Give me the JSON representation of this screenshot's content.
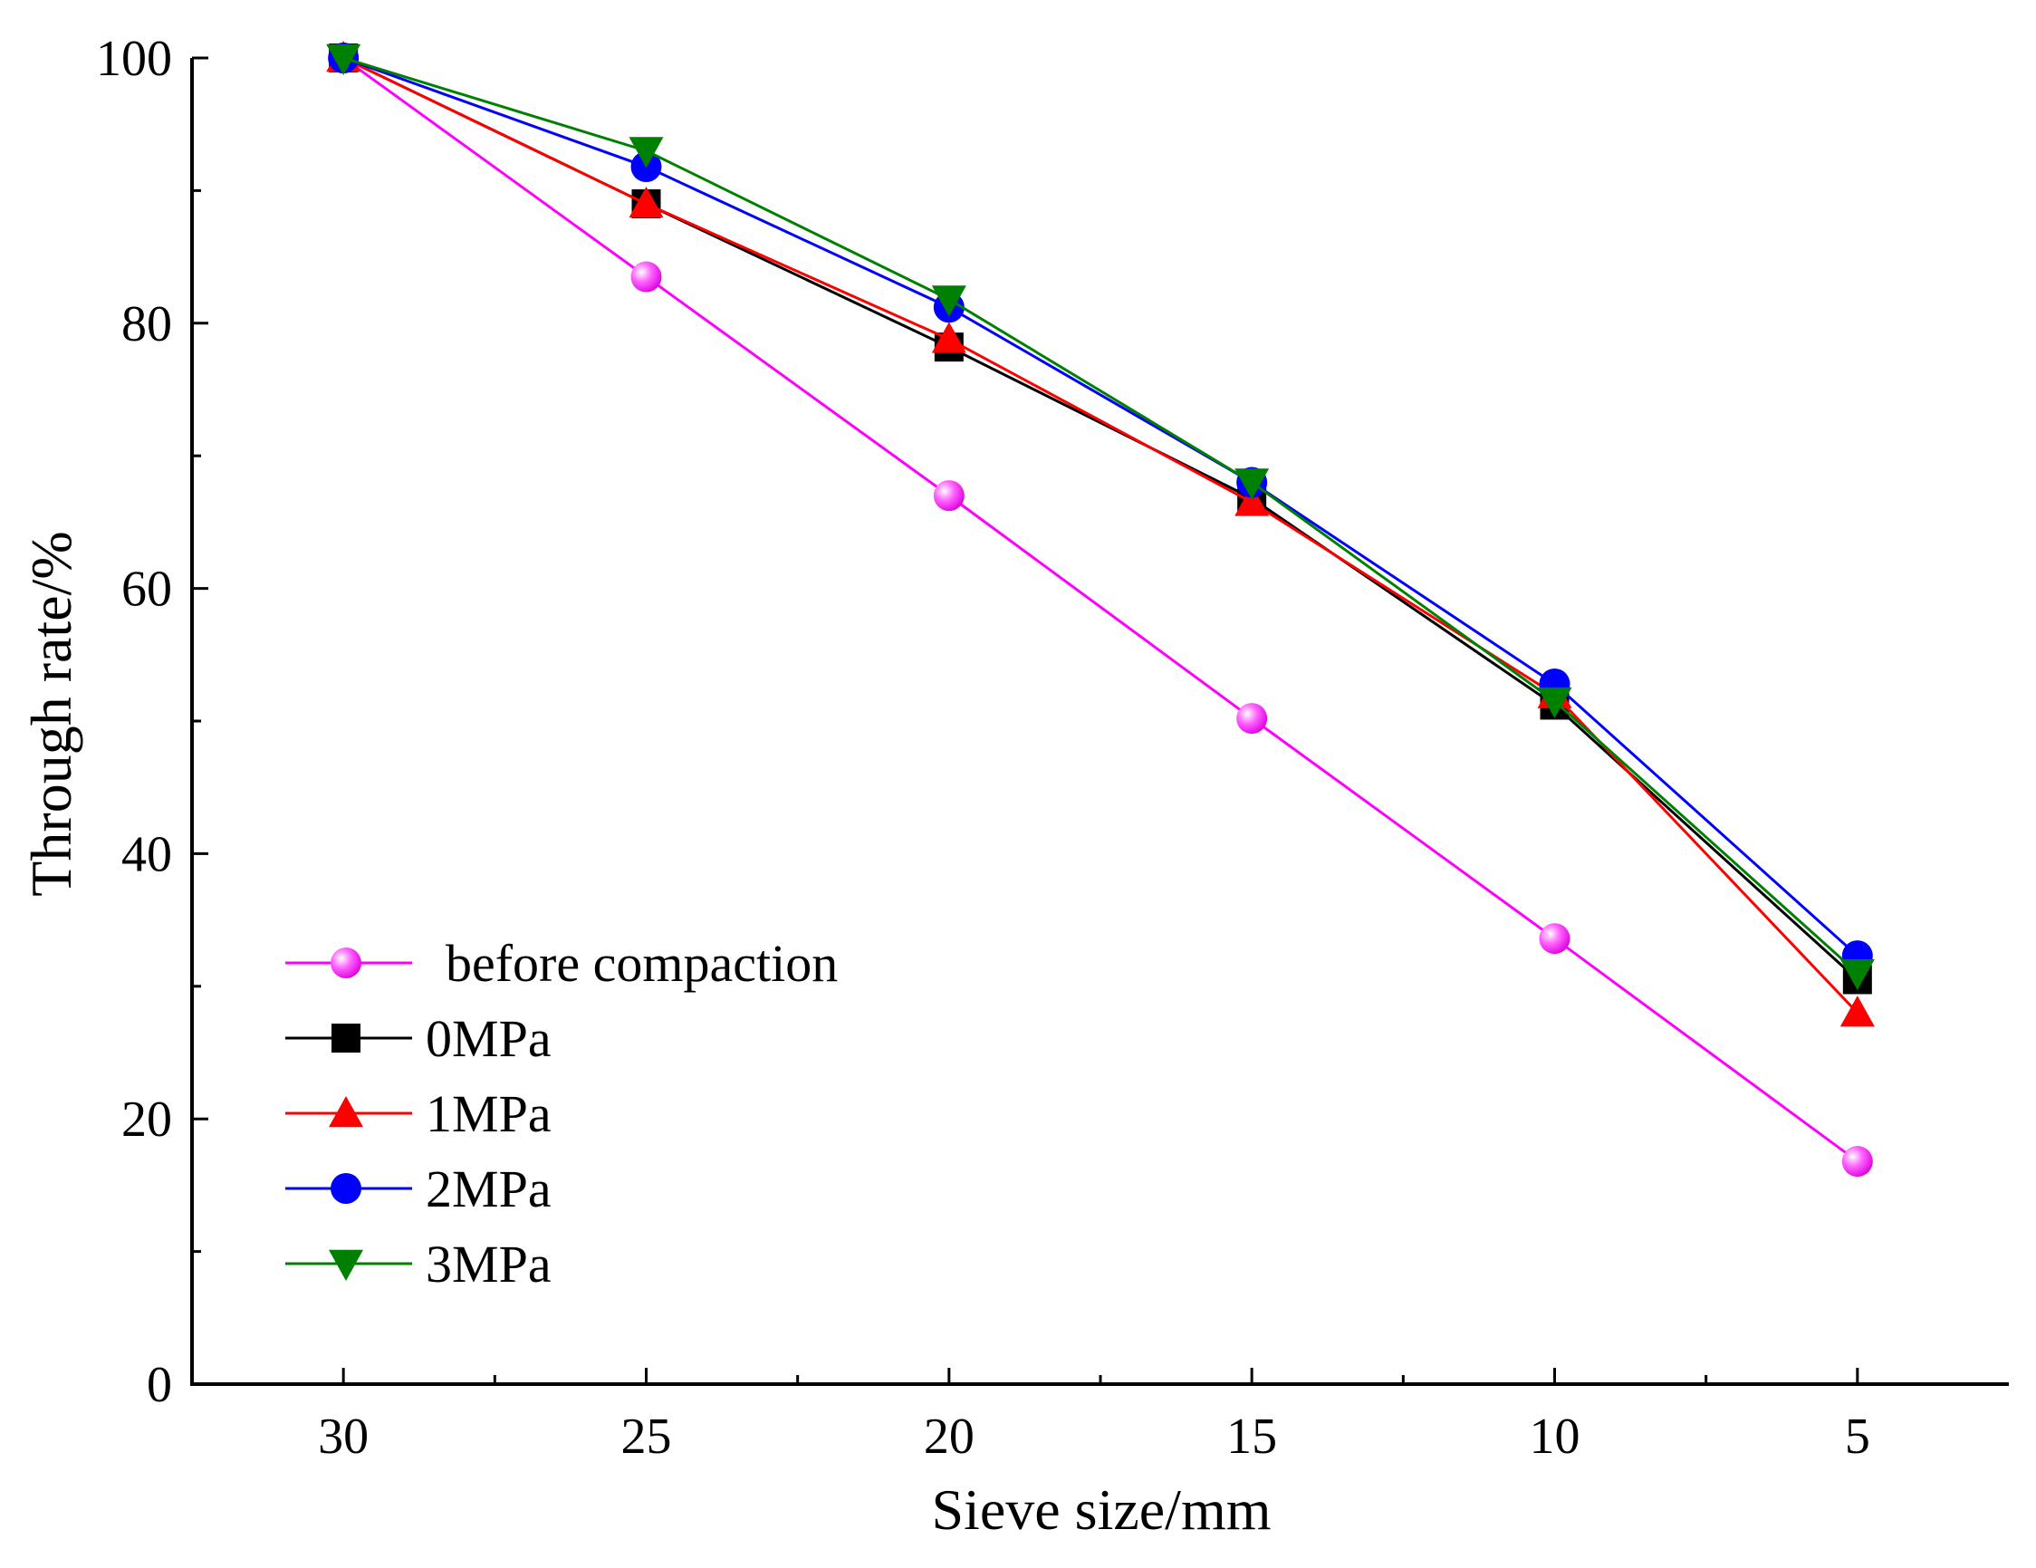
{
  "chart_data": {
    "type": "line",
    "title": "",
    "xlabel": "Sieve size/mm",
    "ylabel": "Through rate/%",
    "categories": [
      "30",
      "25",
      "20",
      "15",
      "10",
      "5"
    ],
    "x": [
      30,
      25,
      20,
      15,
      10,
      5
    ],
    "xlim": [
      32.5,
      2.5
    ],
    "ylim": [
      0,
      100
    ],
    "y_ticks": [
      0,
      20,
      40,
      60,
      80,
      100
    ],
    "y_tick_labels": [
      "0",
      "20",
      "40",
      "60",
      "80",
      "100"
    ],
    "x_tick_labels": [
      "30",
      "25",
      "20",
      "15",
      "10",
      "5"
    ],
    "grid": false,
    "legend_position": "bottom-left",
    "series": [
      {
        "name": "before compaction",
        "color": "#ff00ff",
        "marker": "sphere",
        "values": [
          100,
          83.5,
          67,
          50.2,
          33.6,
          16.8
        ]
      },
      {
        "name": "0MPa",
        "color": "#000000",
        "marker": "square",
        "values": [
          100,
          89,
          78.2,
          66.8,
          51.2,
          30.5
        ]
      },
      {
        "name": "1MPa",
        "color": "#ff0000",
        "marker": "triangle-up",
        "values": [
          100,
          89,
          78.8,
          66.5,
          52,
          28
        ]
      },
      {
        "name": "2MPa",
        "color": "#0000ff",
        "marker": "circle",
        "values": [
          100,
          91.8,
          81.2,
          68,
          52.8,
          32.3
        ]
      },
      {
        "name": "3MPa",
        "color": "#008000",
        "marker": "triangle-down",
        "values": [
          100,
          93,
          81.8,
          68,
          51.5,
          31
        ]
      }
    ]
  }
}
